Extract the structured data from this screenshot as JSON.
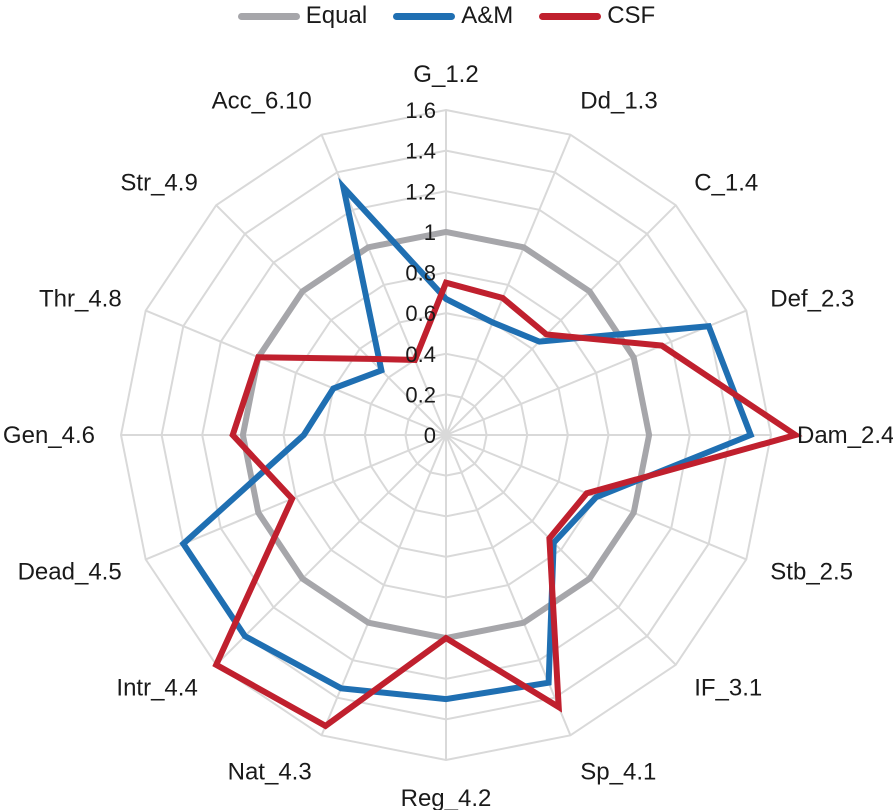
{
  "chart_data": {
    "type": "radar",
    "categories": [
      "G_1.2",
      "Dd_1.3",
      "C_1.4",
      "Def_2.3",
      "Dam_2.4",
      "Stb_2.5",
      "IF_3.1",
      "Sp_4.1",
      "Reg_4.2",
      "Nat_4.3",
      "Intr_4.4",
      "Dead_4.5",
      "Gen_4.6",
      "Thr_4.8",
      "Str_4.9",
      "Acc_6.10"
    ],
    "series": [
      {
        "name": "Equal",
        "color": "#a6a6aa",
        "values": [
          1,
          1,
          1,
          1,
          1,
          1,
          1,
          1,
          1,
          1,
          1,
          1,
          1,
          1,
          1,
          1
        ]
      },
      {
        "name": "A&M",
        "color": "#1f6fb2",
        "values": [
          0.67,
          0.6,
          0.65,
          1.4,
          1.5,
          0.8,
          0.75,
          1.32,
          1.3,
          1.35,
          1.4,
          1.4,
          0.7,
          0.6,
          0.45,
          1.32
        ]
      },
      {
        "name": "CSF",
        "color": "#c0202e",
        "values": [
          0.75,
          0.73,
          0.7,
          1.15,
          1.72,
          0.75,
          0.72,
          1.45,
          1.0,
          1.55,
          1.6,
          0.82,
          1.05,
          1.0,
          0.53,
          0.4
        ]
      }
    ],
    "r_ticks": [
      "0",
      "0.2",
      "0.4",
      "0.6",
      "0.8",
      "1",
      "1.2",
      "1.4",
      "1.6"
    ],
    "rlim": [
      0,
      1.6
    ],
    "grid": true,
    "legend": "top-center"
  }
}
